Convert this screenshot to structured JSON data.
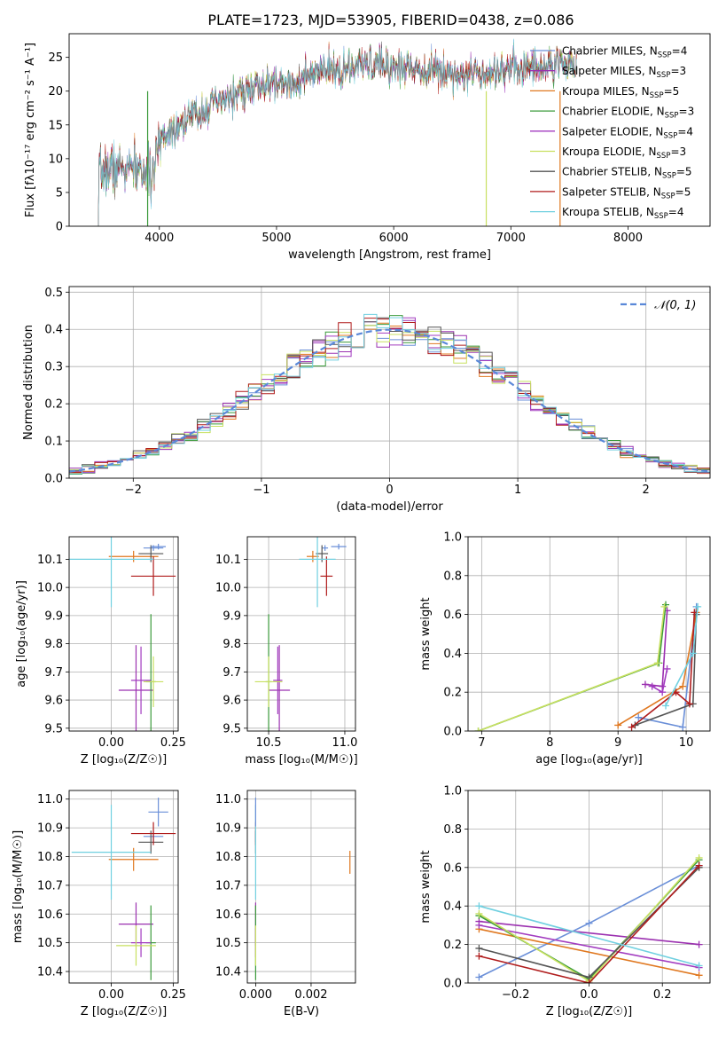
{
  "figure_title": "PLATE=1723, MJD=53905, FIBERID=0438, z=0.086",
  "series_styles": [
    {
      "name": "Chabrier MILES",
      "nssp": "4",
      "color": "#6a8fd8"
    },
    {
      "name": "Salpeter MILES",
      "nssp": "3",
      "color": "#9b30b0"
    },
    {
      "name": "Kroupa MILES",
      "nssp": "5",
      "color": "#e07820"
    },
    {
      "name": "Chabrier ELODIE",
      "nssp": "3",
      "color": "#3a9a3a"
    },
    {
      "name": "Salpeter ELODIE",
      "nssp": "4",
      "color": "#a23cc0"
    },
    {
      "name": "Kroupa ELODIE",
      "nssp": "3",
      "color": "#c8e060"
    },
    {
      "name": "Chabrier STELIB",
      "nssp": "5",
      "color": "#555555"
    },
    {
      "name": "Salpeter STELIB",
      "nssp": "5",
      "color": "#b01c1c"
    },
    {
      "name": "Kroupa STELIB",
      "nssp": "4",
      "color": "#70d0e0"
    }
  ],
  "chart_data": [
    {
      "id": "spectrum",
      "type": "line",
      "xlabel": "wavelength [Angstrom, rest frame]",
      "ylabel": "Flux [fλ10⁻¹⁷ erg cm⁻² s⁻¹ A⁻¹]",
      "xlim": [
        3230,
        8700
      ],
      "ylim": [
        0,
        28.5
      ],
      "xticks": [
        4000,
        5000,
        6000,
        7000,
        8000
      ],
      "yticks": [
        0,
        5,
        10,
        15,
        20,
        25
      ],
      "legend": "upper-right",
      "continuum": [
        [
          3480,
          8.0
        ],
        [
          3600,
          8.5
        ],
        [
          3800,
          8.5
        ],
        [
          3950,
          7.5
        ],
        [
          4000,
          13.0
        ],
        [
          4200,
          15.5
        ],
        [
          4400,
          17.5
        ],
        [
          4600,
          19.0
        ],
        [
          4800,
          20.5
        ],
        [
          5000,
          21.0
        ],
        [
          5200,
          21.5
        ],
        [
          5400,
          23.0
        ],
        [
          5600,
          23.0
        ],
        [
          5800,
          24.0
        ],
        [
          6000,
          23.5
        ],
        [
          6200,
          23.5
        ],
        [
          6400,
          23.0
        ],
        [
          6600,
          22.5
        ],
        [
          6800,
          23.0
        ],
        [
          7000,
          23.5
        ],
        [
          7200,
          23.5
        ],
        [
          7400,
          24.0
        ],
        [
          7550,
          24.2
        ]
      ],
      "x_range_data": [
        3480,
        7560
      ]
    },
    {
      "id": "residuals",
      "type": "bar",
      "xlabel": "(data-model)/error",
      "ylabel": "Normed distribution",
      "xlim": [
        -2.5,
        2.5
      ],
      "ylim": [
        0,
        0.515
      ],
      "xticks": [
        -2,
        -1,
        0,
        1,
        2
      ],
      "yticks": [
        0.0,
        0.1,
        0.2,
        0.3,
        0.4,
        0.5
      ],
      "grid": true,
      "legend": "upper-right",
      "legend_label": "𝒩(0, 1)",
      "bin_width": 0.1,
      "gaussian": {
        "mean": 0,
        "sigma": 1
      }
    },
    {
      "id": "age-vs-Z",
      "type": "scatter",
      "xlabel": "Z [log₁₀(Z/Z☉)]",
      "ylabel": "age  [log₁₀(age/yr)]",
      "xlim": [
        -0.17,
        0.27
      ],
      "ylim": [
        9.49,
        10.18
      ],
      "xticks": [
        0.0,
        0.25
      ],
      "yticks": [
        9.5,
        9.6,
        9.7,
        9.8,
        9.9,
        10.0,
        10.1
      ],
      "grid": true,
      "points": [
        {
          "x": 0.17,
          "y": 10.14,
          "xerr": 0.04,
          "yerr": 0.01
        },
        {
          "x": 0.1,
          "y": 9.635,
          "xerr": 0.07,
          "yerr": 0.16
        },
        {
          "x": 0.09,
          "y": 10.11,
          "xerr": 0.1,
          "yerr": 0.02
        },
        {
          "x": 0.16,
          "y": 9.665,
          "xerr": 0.02,
          "yerr": 0.24
        },
        {
          "x": 0.12,
          "y": 9.67,
          "xerr": 0.04,
          "yerr": 0.12
        },
        {
          "x": 0.17,
          "y": 9.665,
          "xerr": 0.04,
          "yerr": 0.09
        },
        {
          "x": 0.16,
          "y": 10.12,
          "xerr": 0.05,
          "yerr": 0.03
        },
        {
          "x": 0.17,
          "y": 10.04,
          "xerr": 0.09,
          "yerr": 0.07
        },
        {
          "x": 0.0,
          "y": 10.1,
          "xerr": 0.17,
          "yerr": 0.17
        },
        {
          "x": 0.19,
          "y": 10.145,
          "xerr": 0.03,
          "yerr": 0.01
        }
      ]
    },
    {
      "id": "age-vs-mass",
      "type": "scatter",
      "xlabel": "mass [log₁₀(M/M☉)]",
      "ylabel": "",
      "xlim": [
        10.36,
        11.07
      ],
      "ylim": [
        9.49,
        10.18
      ],
      "xticks": [
        10.5,
        11.0
      ],
      "yticks": [
        9.5,
        9.6,
        9.7,
        9.8,
        9.9,
        10.0,
        10.1
      ],
      "grid": true,
      "points": [
        {
          "x": 10.87,
          "y": 10.14,
          "xerr": 0.02,
          "yerr": 0.01
        },
        {
          "x": 10.57,
          "y": 9.635,
          "xerr": 0.07,
          "yerr": 0.16
        },
        {
          "x": 10.79,
          "y": 10.11,
          "xerr": 0.04,
          "yerr": 0.02
        },
        {
          "x": 10.5,
          "y": 9.665,
          "xerr": 0.02,
          "yerr": 0.24
        },
        {
          "x": 10.56,
          "y": 9.67,
          "xerr": 0.03,
          "yerr": 0.12
        },
        {
          "x": 10.5,
          "y": 9.665,
          "xerr": 0.09,
          "yerr": 0.09
        },
        {
          "x": 10.85,
          "y": 10.12,
          "xerr": 0.04,
          "yerr": 0.03
        },
        {
          "x": 10.88,
          "y": 10.04,
          "xerr": 0.04,
          "yerr": 0.07
        },
        {
          "x": 10.82,
          "y": 10.1,
          "xerr": 0.12,
          "yerr": 0.17
        },
        {
          "x": 10.96,
          "y": 10.145,
          "xerr": 0.05,
          "yerr": 0.01
        }
      ]
    },
    {
      "id": "weight-vs-age",
      "type": "line",
      "xlabel": "age  [log₁₀(age/yr)]",
      "ylabel": "mass weight",
      "xlim": [
        6.8,
        10.35
      ],
      "ylim": [
        0,
        1.0
      ],
      "xticks": [
        7,
        8,
        9,
        10
      ],
      "yticks": [
        0.0,
        0.2,
        0.4,
        0.6,
        0.8,
        1.0
      ],
      "grid": true,
      "series": [
        {
          "points": [
            [
              9.3,
              0.07
            ],
            [
              9.95,
              0.02
            ],
            [
              10.15,
              0.64
            ]
          ]
        },
        {
          "points": [
            [
              9.4,
              0.24
            ],
            [
              9.65,
              0.23
            ],
            [
              9.72,
              0.62
            ]
          ]
        },
        {
          "points": [
            [
              9.0,
              0.03
            ],
            [
              9.95,
              0.23
            ],
            [
              10.15,
              0.61
            ]
          ]
        },
        {
          "points": [
            [
              6.95,
              0.0
            ],
            [
              9.6,
              0.35
            ],
            [
              9.7,
              0.65
            ]
          ]
        },
        {
          "points": [
            [
              9.5,
              0.23
            ],
            [
              9.65,
              0.2
            ],
            [
              9.72,
              0.32
            ]
          ]
        },
        {
          "points": [
            [
              6.95,
              0.0
            ],
            [
              9.58,
              0.35
            ],
            [
              9.68,
              0.64
            ]
          ]
        },
        {
          "points": [
            [
              9.25,
              0.03
            ],
            [
              10.1,
              0.14
            ],
            [
              10.15,
              0.6
            ]
          ]
        },
        {
          "points": [
            [
              9.2,
              0.02
            ],
            [
              9.85,
              0.2
            ],
            [
              10.05,
              0.14
            ],
            [
              10.12,
              0.61
            ]
          ]
        },
        {
          "points": [
            [
              9.7,
              0.13
            ],
            [
              10.1,
              0.4
            ],
            [
              10.17,
              0.64
            ]
          ]
        }
      ]
    },
    {
      "id": "mass-vs-Z",
      "type": "scatter",
      "xlabel": "Z [log₁₀(Z/Z☉)]",
      "ylabel": "mass [log₁₀(M/M☉)]",
      "xlim": [
        -0.17,
        0.27
      ],
      "ylim": [
        10.36,
        11.03
      ],
      "xticks": [
        0.0,
        0.25
      ],
      "yticks": [
        10.4,
        10.5,
        10.6,
        10.7,
        10.8,
        10.9,
        11.0
      ],
      "grid": true,
      "points": [
        {
          "x": 0.17,
          "y": 10.87,
          "xerr": 0.04,
          "yerr": 0.02
        },
        {
          "x": 0.1,
          "y": 10.565,
          "xerr": 0.07,
          "yerr": 0.075
        },
        {
          "x": 0.09,
          "y": 10.79,
          "xerr": 0.1,
          "yerr": 0.04
        },
        {
          "x": 0.16,
          "y": 10.5,
          "xerr": 0.02,
          "yerr": 0.13
        },
        {
          "x": 0.12,
          "y": 10.5,
          "xerr": 0.04,
          "yerr": 0.05
        },
        {
          "x": 0.1,
          "y": 10.49,
          "xerr": 0.08,
          "yerr": 0.07
        },
        {
          "x": 0.16,
          "y": 10.85,
          "xerr": 0.05,
          "yerr": 0.04
        },
        {
          "x": 0.17,
          "y": 10.88,
          "xerr": 0.09,
          "yerr": 0.04
        },
        {
          "x": 0.0,
          "y": 10.815,
          "xerr": 0.16,
          "yerr": 0.165
        },
        {
          "x": 0.19,
          "y": 10.955,
          "xerr": 0.04,
          "yerr": 0.05
        }
      ]
    },
    {
      "id": "mass-vs-EBV",
      "type": "scatter",
      "xlabel": "E(B-V)",
      "ylabel": "",
      "xlim": [
        -0.0003,
        0.0036
      ],
      "ylim": [
        10.36,
        11.03
      ],
      "xticks": [
        0.0,
        0.002
      ],
      "yticks": [
        10.4,
        10.5,
        10.6,
        10.7,
        10.8,
        10.9,
        11.0
      ],
      "grid": true,
      "points": [
        {
          "x": 0.0,
          "y": 10.87,
          "xerr": 0.0,
          "yerr": 0.02
        },
        {
          "x": 0.0,
          "y": 10.565,
          "xerr": 0.0,
          "yerr": 0.075
        },
        {
          "x": 0.0034,
          "y": 10.78,
          "xerr": 0.0,
          "yerr": 0.04
        },
        {
          "x": 0.0,
          "y": 10.5,
          "xerr": 0.0,
          "yerr": 0.13
        },
        {
          "x": 0.0,
          "y": 10.5,
          "xerr": 0.0,
          "yerr": 0.05
        },
        {
          "x": 0.0,
          "y": 10.49,
          "xerr": 0.0,
          "yerr": 0.07
        },
        {
          "x": 0.0,
          "y": 10.85,
          "xerr": 0.0,
          "yerr": 0.04
        },
        {
          "x": 0.0,
          "y": 10.88,
          "xerr": 0.0,
          "yerr": 0.04
        },
        {
          "x": 0.0,
          "y": 10.815,
          "xerr": 0.0,
          "yerr": 0.165
        },
        {
          "x": 0.0,
          "y": 10.955,
          "xerr": 0.0,
          "yerr": 0.05
        }
      ]
    },
    {
      "id": "weight-vs-Z",
      "type": "line",
      "xlabel": "Z [log₁₀(Z/Z☉)]",
      "ylabel": "mass weight",
      "xlim": [
        -0.33,
        0.33
      ],
      "ylim": [
        0,
        1.0
      ],
      "xticks": [
        -0.2,
        0.0,
        0.2
      ],
      "yticks": [
        0.0,
        0.2,
        0.4,
        0.6,
        0.8,
        1.0
      ],
      "grid": true,
      "series": [
        {
          "points": [
            [
              -0.3,
              0.03
            ],
            [
              0.0,
              0.31
            ],
            [
              0.3,
              0.61
            ]
          ]
        },
        {
          "points": [
            [
              -0.3,
              0.32
            ],
            [
              0.3,
              0.2
            ]
          ]
        },
        {
          "points": [
            [
              -0.3,
              0.28
            ],
            [
              0.3,
              0.04
            ]
          ]
        },
        {
          "points": [
            [
              -0.3,
              0.35
            ],
            [
              0.0,
              0.02
            ],
            [
              0.3,
              0.64
            ]
          ]
        },
        {
          "points": [
            [
              -0.3,
              0.3
            ],
            [
              0.3,
              0.08
            ]
          ]
        },
        {
          "points": [
            [
              -0.3,
              0.36
            ],
            [
              0.0,
              0.01
            ],
            [
              0.3,
              0.65
            ]
          ]
        },
        {
          "points": [
            [
              -0.3,
              0.18
            ],
            [
              0.0,
              0.03
            ],
            [
              0.3,
              0.6
            ]
          ]
        },
        {
          "points": [
            [
              -0.3,
              0.14
            ],
            [
              0.0,
              0.0
            ],
            [
              0.3,
              0.61
            ]
          ]
        },
        {
          "points": [
            [
              -0.3,
              0.4
            ],
            [
              0.3,
              0.09
            ]
          ]
        }
      ]
    }
  ]
}
